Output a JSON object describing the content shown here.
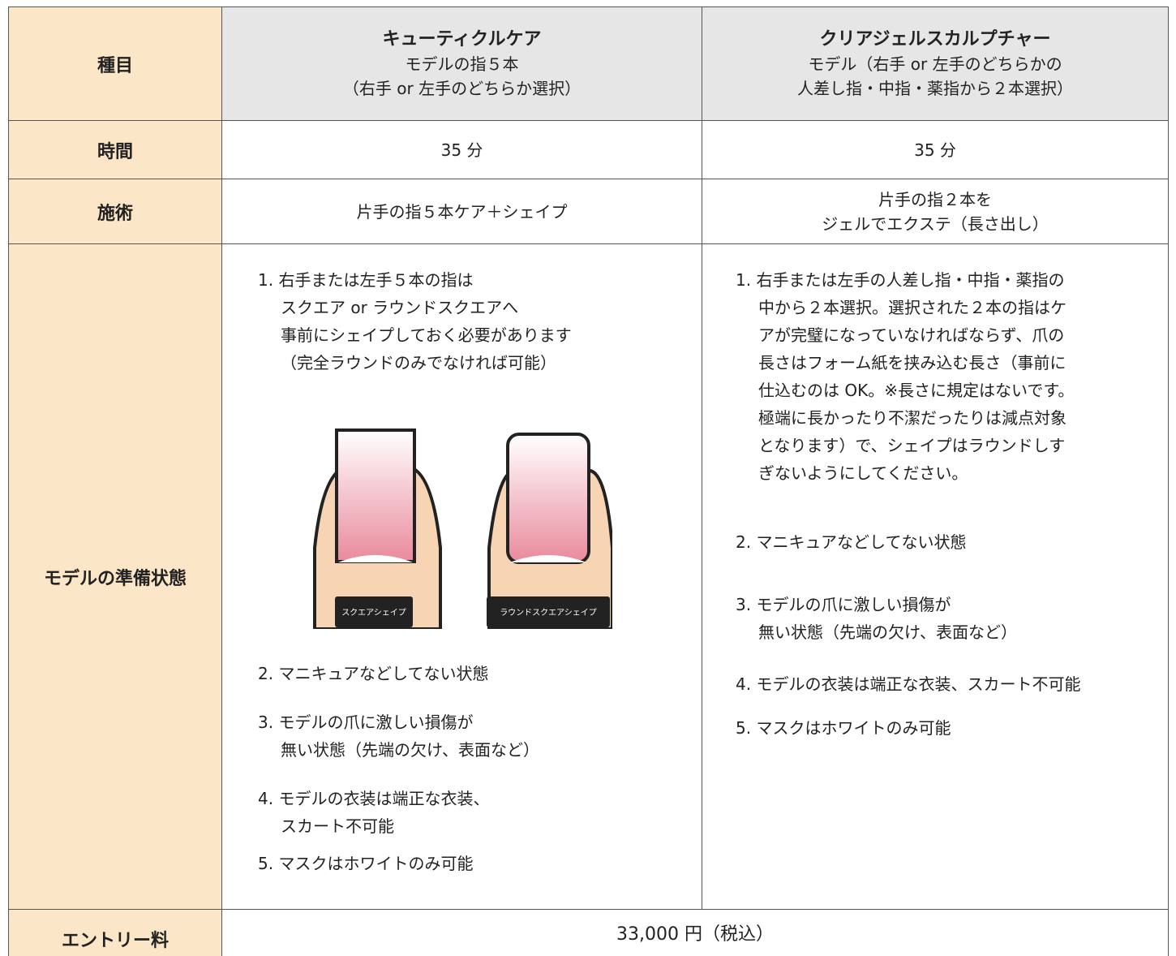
{
  "header": {
    "label": "種目",
    "col1": {
      "title": "キューティクルケア",
      "lines": [
        "モデルの指５本",
        "（右手 or 左手のどちらか選択）"
      ]
    },
    "col2": {
      "title": "クリアジェルスカルプチャー",
      "lines": [
        "モデル（右手 or 左手のどちらかの",
        "人差し指・中指・薬指から２本選択）"
      ]
    }
  },
  "time": {
    "label": "時間",
    "col1": "35 分",
    "col2": "35 分"
  },
  "procedure": {
    "label": "施術",
    "col1": [
      "片手の指５本ケア＋シェイプ"
    ],
    "col2": [
      "片手の指２本を",
      "ジェルでエクステ（長さ出し）"
    ]
  },
  "model": {
    "label": "モデルの準備状態",
    "col1": {
      "item1": [
        "1. 右手または左手５本の指は",
        "スクエア or ラウンドスクエアへ",
        "事前にシェイプしておく必要があります",
        "（完全ラウンドのみでなければ可能）"
      ],
      "image_labels": [
        "スクエアシェイプ",
        "ラウンドスクエアシェイプ"
      ],
      "items": [
        [
          "2. マニキュアなどしてない状態"
        ],
        [
          "3. モデルの爪に激しい損傷が",
          "無い状態（先端の欠け、表面など）"
        ],
        [
          "4. モデルの衣装は端正な衣装、",
          "スカート不可能"
        ],
        [
          "5. マスクはホワイトのみ可能"
        ]
      ]
    },
    "col2": {
      "item1": [
        "1. 右手または左手の人差し指・中指・薬指の",
        "中から２本選択。選択された２本の指はケ",
        "アが完璧になっていなければならず、爪の",
        "長さはフォーム紙を挟み込む長さ（事前に",
        "仕込むのは OK。※長さに規定はないです。",
        "極端に長かったり不潔だったりは減点対象",
        "となります）で、シェイプはラウンドしす",
        "ぎないようにしてください。"
      ],
      "items": [
        [
          "2. マニキュアなどしてない状態"
        ],
        [
          "3. モデルの爪に激しい損傷が",
          "無い状態（先端の欠け、表面など）"
        ],
        [
          "4. モデルの衣装は端正な衣装、スカート不可能"
        ],
        [
          "5. マスクはホワイトのみ可能"
        ]
      ]
    }
  },
  "entry": {
    "label": "エントリー料",
    "fee": "33,000 円（税込）"
  }
}
